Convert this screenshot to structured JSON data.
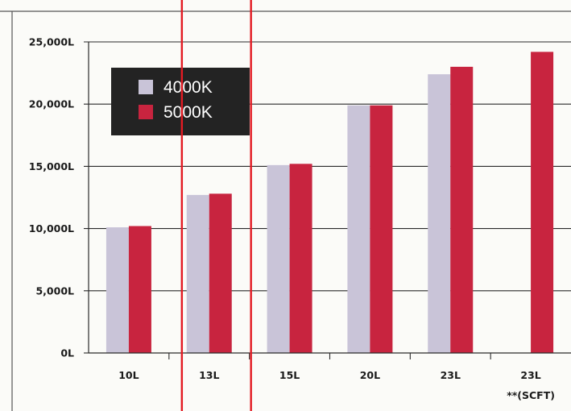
{
  "chart_data": {
    "type": "bar",
    "categories": [
      "10L",
      "13L",
      "15L",
      "20L",
      "23L",
      "23L"
    ],
    "category_sublabels": [
      "",
      "",
      "",
      "",
      "",
      "**(SCFT)"
    ],
    "series": [
      {
        "name": "4000K",
        "values": [
          10100,
          12700,
          15100,
          19900,
          22400,
          null
        ]
      },
      {
        "name": "5000K",
        "values": [
          10200,
          12800,
          15200,
          19900,
          23000,
          24200
        ]
      }
    ],
    "y_ticks": [
      {
        "value": 0,
        "label": "0L"
      },
      {
        "value": 5000,
        "label": "5,000L"
      },
      {
        "value": 10000,
        "label": "10,000L"
      },
      {
        "value": 15000,
        "label": "15,000L"
      },
      {
        "value": 20000,
        "label": "20,000L"
      },
      {
        "value": 25000,
        "label": "25,000L"
      }
    ],
    "ylim": [
      0,
      25000
    ],
    "grid": true,
    "legend_position": "top-left",
    "highlight_category": "13L",
    "colors": {
      "series_4000K": "#c9c4d8",
      "series_5000K": "#c8243f",
      "legend_bg": "#232323",
      "highlight": "#e31b23",
      "grid": "#2a2a2a",
      "frame": "#555555"
    }
  }
}
